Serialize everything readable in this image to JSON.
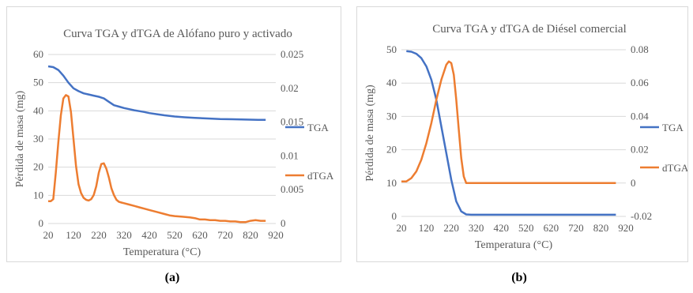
{
  "chart_data": [
    {
      "type": "line",
      "title": "Curva TGA y dTGA  de Alófano  puro y activado",
      "xlabel": "Temperatura (°C)",
      "ylabel": "Pérdida de masa (mg)",
      "xlim": [
        20,
        920
      ],
      "ylim_left": [
        0,
        60
      ],
      "ylim_right": [
        0,
        0.025
      ],
      "x_ticks": [
        "20",
        "120",
        "220",
        "320",
        "420",
        "520",
        "620",
        "720",
        "820",
        "920"
      ],
      "y_ticks_left": [
        "0",
        "10",
        "20",
        "30",
        "40",
        "50",
        "60"
      ],
      "y_ticks_right": [
        "0",
        "0.005",
        "0.01",
        "0.015",
        "0.02",
        "0.025"
      ],
      "grid": true,
      "legend_position": "right",
      "series": [
        {
          "name": "TGA",
          "axis": "left",
          "color": "#4472C4",
          "x": [
            20,
            40,
            60,
            80,
            100,
            120,
            140,
            160,
            180,
            200,
            220,
            240,
            260,
            280,
            300,
            320,
            340,
            360,
            380,
            400,
            420,
            450,
            480,
            520,
            560,
            600,
            650,
            700,
            750,
            800,
            850,
            880
          ],
          "y": [
            55.8,
            55.5,
            54.5,
            52.5,
            50,
            48,
            47,
            46.2,
            45.8,
            45.4,
            45,
            44.4,
            43.2,
            42,
            41.5,
            41,
            40.6,
            40.2,
            39.9,
            39.6,
            39.2,
            38.8,
            38.4,
            38,
            37.7,
            37.5,
            37.3,
            37.1,
            37,
            36.9,
            36.8,
            36.8
          ]
        },
        {
          "name": "dTGA",
          "axis": "right",
          "color": "#ED7D31",
          "x": [
            20,
            30,
            40,
            50,
            60,
            70,
            80,
            90,
            100,
            110,
            120,
            130,
            140,
            150,
            160,
            170,
            180,
            190,
            200,
            210,
            220,
            230,
            240,
            250,
            260,
            270,
            280,
            290,
            300,
            310,
            320,
            340,
            360,
            380,
            400,
            420,
            450,
            480,
            500,
            520,
            550,
            580,
            600,
            620,
            640,
            660,
            680,
            700,
            720,
            740,
            760,
            780,
            800,
            820,
            840,
            860,
            880
          ],
          "y": [
            0.0033,
            0.0033,
            0.0036,
            0.0075,
            0.012,
            0.016,
            0.0185,
            0.019,
            0.0188,
            0.0165,
            0.0125,
            0.0085,
            0.0058,
            0.0045,
            0.0038,
            0.0035,
            0.0034,
            0.0036,
            0.0042,
            0.0055,
            0.0075,
            0.0088,
            0.0089,
            0.0081,
            0.0068,
            0.0052,
            0.0042,
            0.0035,
            0.0032,
            0.0031,
            0.003,
            0.0028,
            0.0026,
            0.0024,
            0.0022,
            0.002,
            0.0017,
            0.0014,
            0.0012,
            0.0011,
            0.001,
            0.0009,
            0.0008,
            0.0006,
            0.0006,
            0.0005,
            0.0005,
            0.0004,
            0.0004,
            0.0003,
            0.0003,
            0.0002,
            0.0002,
            0.0004,
            0.0005,
            0.0004,
            0.0004
          ]
        }
      ]
    },
    {
      "type": "line",
      "title": "Curva TGA y dTGA de Diésel comercial",
      "xlabel": "Temperatura (°C)",
      "ylabel": "Pérdida de masa (mg)",
      "xlim": [
        20,
        920
      ],
      "ylim_left": [
        0,
        50
      ],
      "ylim_right": [
        -0.02,
        0.08
      ],
      "x_ticks": [
        "20",
        "120",
        "220",
        "320",
        "420",
        "520",
        "620",
        "720",
        "820",
        "920"
      ],
      "y_ticks_left": [
        "0",
        "10",
        "20",
        "30",
        "40",
        "50"
      ],
      "y_ticks_right": [
        "-0.02",
        "0",
        "0.02",
        "0.04",
        "0.06",
        "0.08"
      ],
      "grid": true,
      "legend_position": "right",
      "series": [
        {
          "name": "TGA",
          "axis": "left",
          "color": "#4472C4",
          "x": [
            40,
            60,
            80,
            100,
            120,
            140,
            160,
            180,
            200,
            220,
            240,
            260,
            280,
            300,
            350,
            400,
            500,
            600,
            700,
            800,
            880
          ],
          "y": [
            49.6,
            49.4,
            48.8,
            47.5,
            45,
            41,
            35,
            27,
            19,
            11,
            4.5,
            1.5,
            0.6,
            0.5,
            0.5,
            0.5,
            0.5,
            0.5,
            0.5,
            0.5,
            0.5
          ]
        },
        {
          "name": "dTGA",
          "axis": "right",
          "color": "#ED7D31",
          "x": [
            20,
            40,
            60,
            80,
            100,
            120,
            140,
            160,
            180,
            200,
            210,
            220,
            230,
            240,
            250,
            260,
            270,
            280,
            300,
            350,
            400,
            500,
            600,
            700,
            800,
            880
          ],
          "y": [
            0.001,
            0.001,
            0.003,
            0.007,
            0.014,
            0.024,
            0.036,
            0.05,
            0.062,
            0.071,
            0.073,
            0.072,
            0.065,
            0.05,
            0.032,
            0.015,
            0.004,
            0.0,
            0.0,
            0.0,
            0.0,
            0.0,
            0.0,
            0.0,
            0.0,
            0.0
          ]
        }
      ]
    }
  ],
  "captions": [
    "(a)",
    "(b)"
  ]
}
